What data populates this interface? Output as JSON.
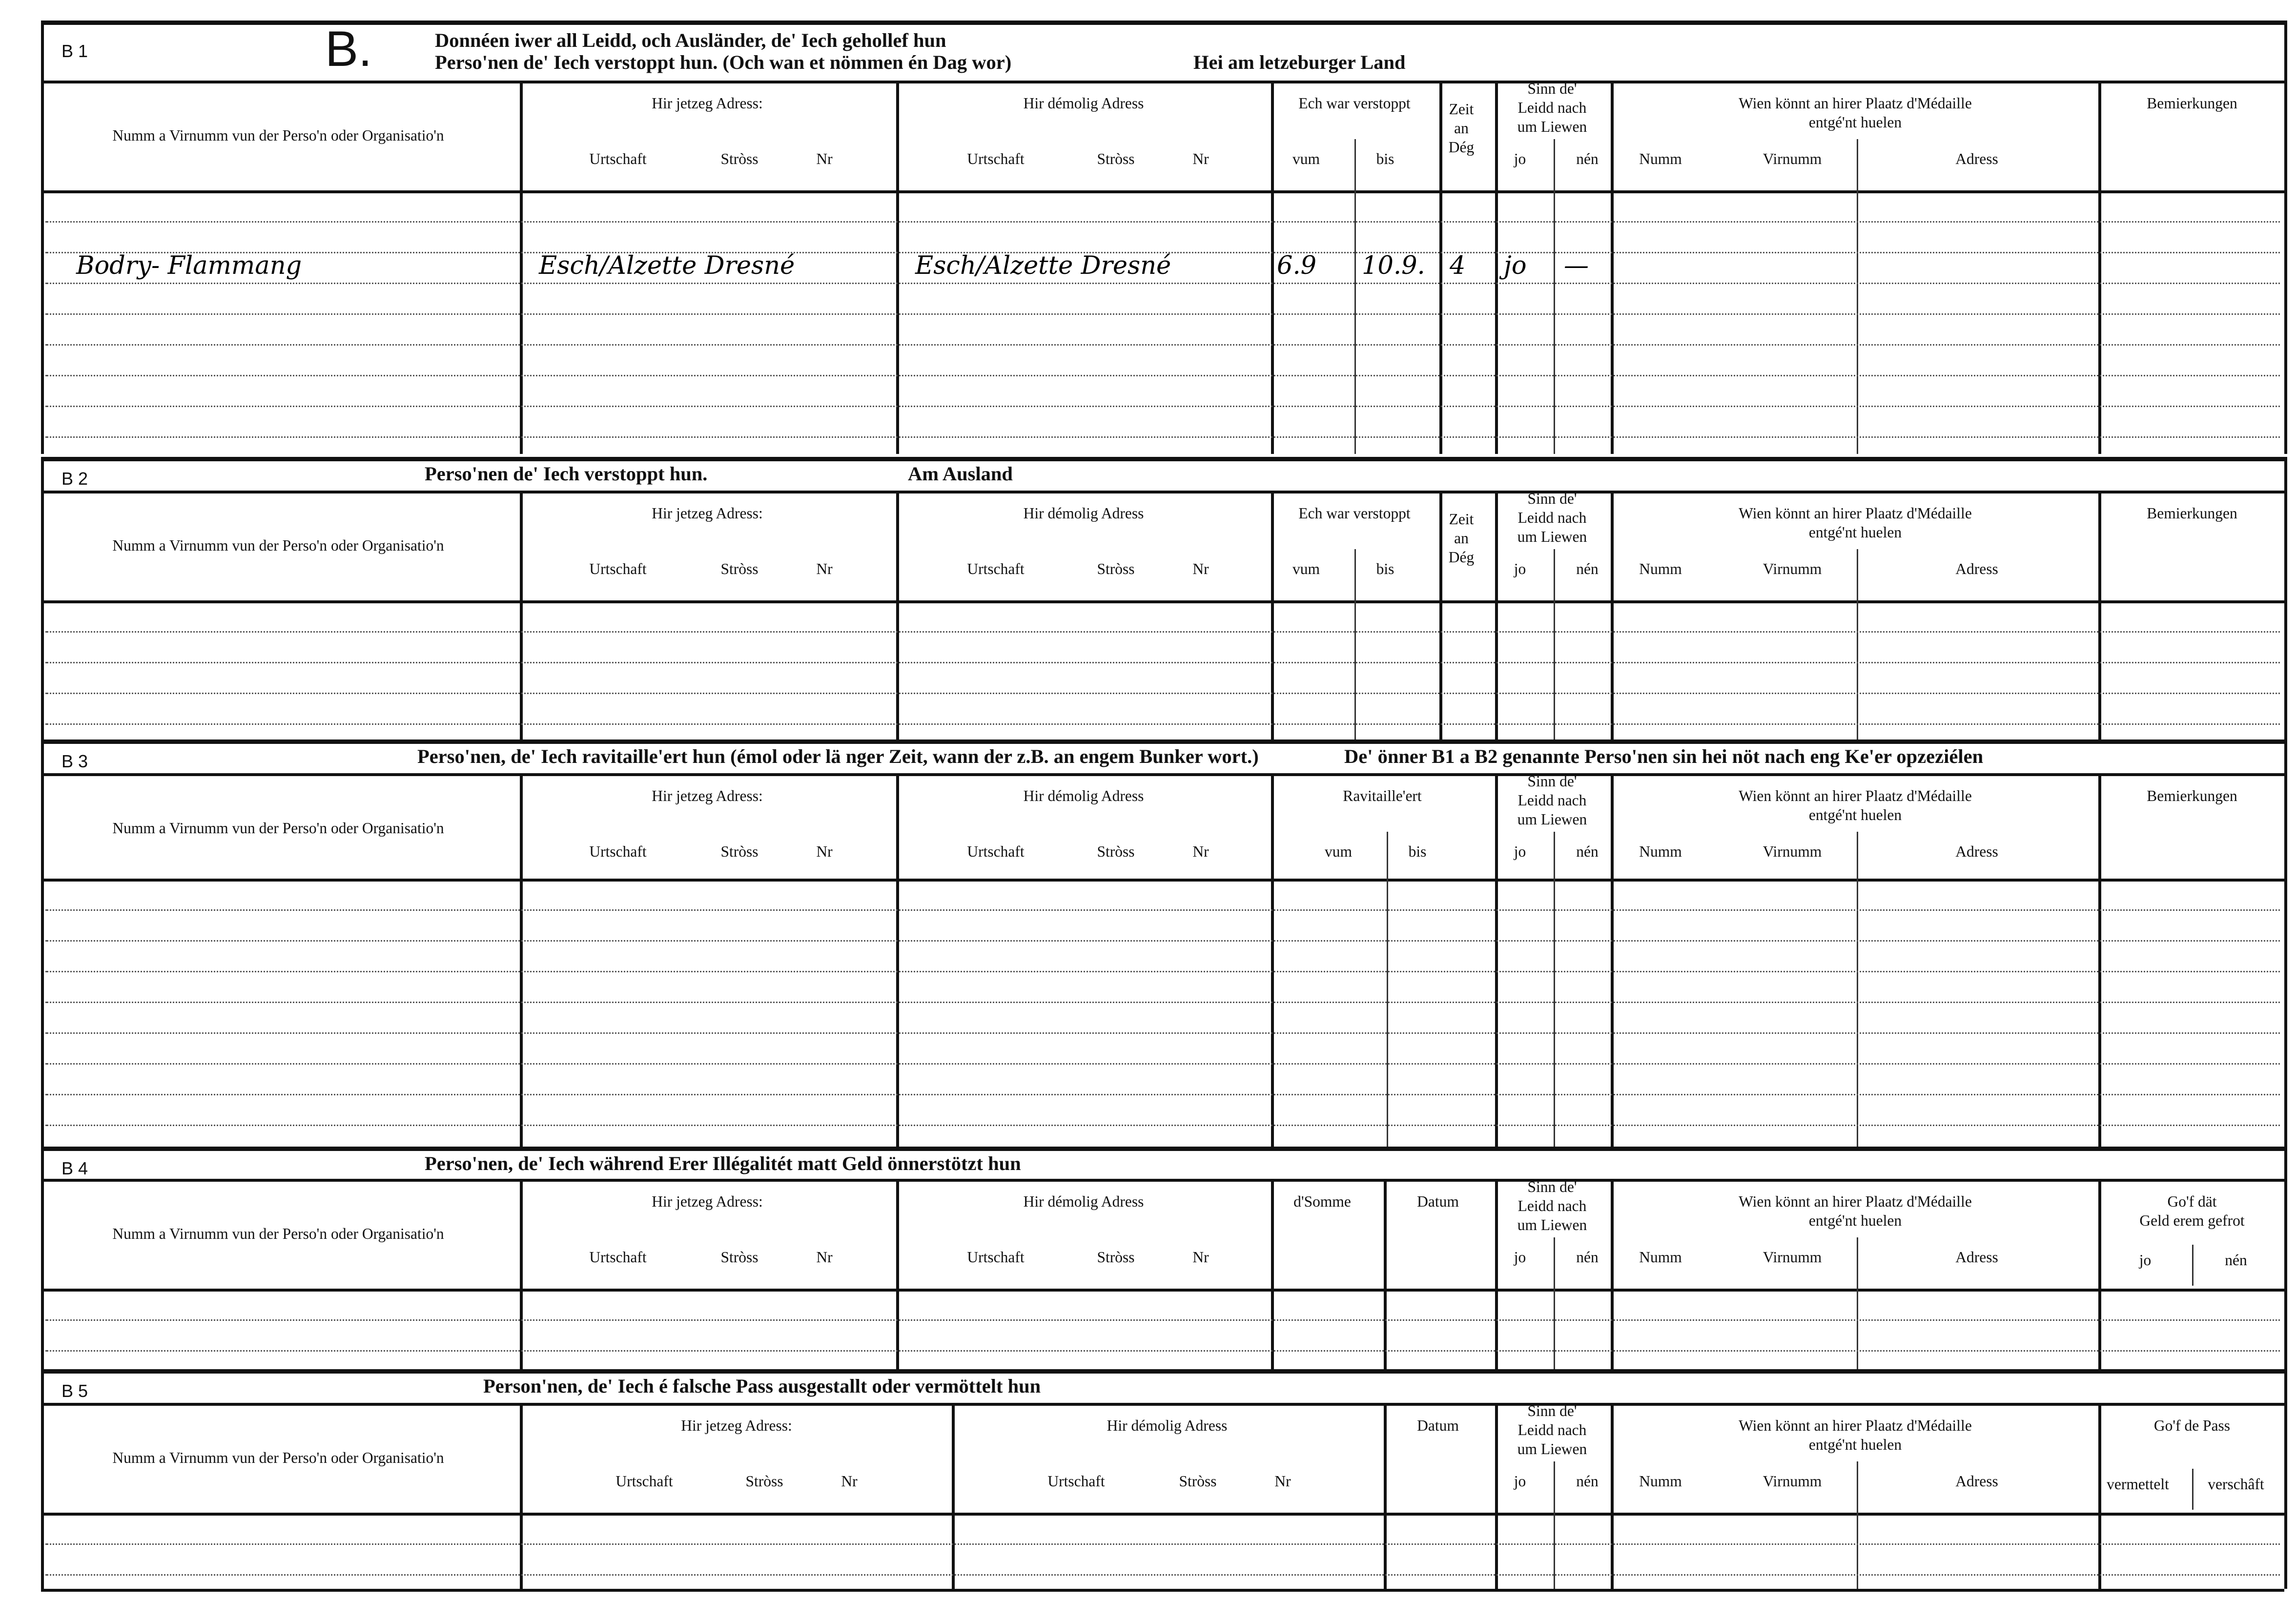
{
  "form_letter": "B.",
  "headers": {
    "name": "Numm a Virnumm vun der Perso'n oder Organisatio'n",
    "current": "Hir jetzeg Adress:",
    "former": "Hir démolig Adress",
    "place": "Urtschaft",
    "street": "Stròss",
    "nr": "Nr",
    "hidden": "Ech war verstoppt",
    "from": "vum",
    "to": "bis",
    "days": "Zeit\nan\nDég",
    "alive": "Sinn de'\nLeidd nach\num Liewen",
    "yes": "jo",
    "no": "nén",
    "medal": "Wien könnt an hirer Plaatz d'Médaille\nentgé'nt huelen",
    "surname": "Numm",
    "firstname": "Virnumm",
    "address": "Adress",
    "remarks": "Bemierkungen",
    "supplied": "Ravitaille'ert",
    "sum": "d'Somme",
    "date": "Datum",
    "money_given": "Go'f dät\nGeld erem gefrot",
    "pass_given": "Go'f de Pass",
    "mediated": "vermettelt",
    "procured": "verschâft"
  },
  "sections": [
    {
      "label": "B 1",
      "title": "Donnéen iwer all Leidd, och Ausländer, de' Iech gehollef hun",
      "subtitle": "Perso'nen de' Iech verstoppt hun. (Och wan et nömmen én Dag wor)",
      "extra": "Hei am letzeburger Land",
      "entries": [
        {
          "name": "Bodry- Flammang",
          "current": "Esch/Alzette Dresné",
          "former": "Esch/Alzette Dresné",
          "from": "6.9",
          "to": "10.9.",
          "days": "4",
          "yes": "jo",
          "no": "—"
        }
      ]
    },
    {
      "label": "B 2",
      "title": "Perso'nen de' Iech verstoppt hun.",
      "extra": "Am Ausland"
    },
    {
      "label": "B 3",
      "title": "Perso'nen, de' Iech ravitaille'ert hun (émol oder lä nger Zeit, wann der z.B. an engem Bunker wort.)",
      "extra": "De' önner B1 a B2 genannte Perso'nen sin hei nöt nach eng Ke'er opzeziélen"
    },
    {
      "label": "B 4",
      "title": "Perso'nen, de' Iech während Erer Illégalitét matt Geld önnerstötzt hun"
    },
    {
      "label": "B 5",
      "title": "Person'nen, de' Iech é falsche Pass ausgestallt oder vermöttelt hun"
    }
  ]
}
